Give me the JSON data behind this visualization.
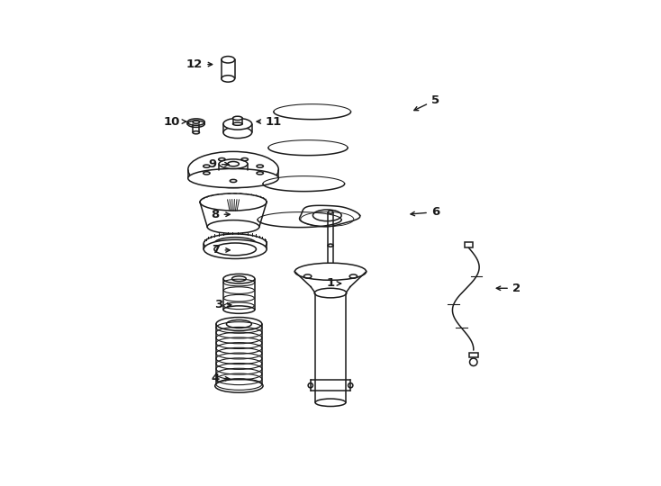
{
  "background_color": "#ffffff",
  "line_color": "#1a1a1a",
  "figure_width": 7.34,
  "figure_height": 5.4,
  "dpi": 100,
  "parts_labels": [
    [
      1,
      0.5,
      0.415,
      0.53,
      0.415
    ],
    [
      2,
      0.89,
      0.405,
      0.84,
      0.405
    ],
    [
      3,
      0.265,
      0.37,
      0.3,
      0.37
    ],
    [
      4,
      0.258,
      0.215,
      0.296,
      0.215
    ],
    [
      5,
      0.72,
      0.8,
      0.668,
      0.775
    ],
    [
      6,
      0.72,
      0.565,
      0.66,
      0.56
    ],
    [
      7,
      0.26,
      0.485,
      0.297,
      0.485
    ],
    [
      8,
      0.258,
      0.56,
      0.297,
      0.56
    ],
    [
      9,
      0.253,
      0.665,
      0.295,
      0.665
    ],
    [
      10,
      0.167,
      0.755,
      0.205,
      0.755
    ],
    [
      11,
      0.38,
      0.755,
      0.337,
      0.755
    ],
    [
      12,
      0.215,
      0.875,
      0.26,
      0.875
    ]
  ]
}
